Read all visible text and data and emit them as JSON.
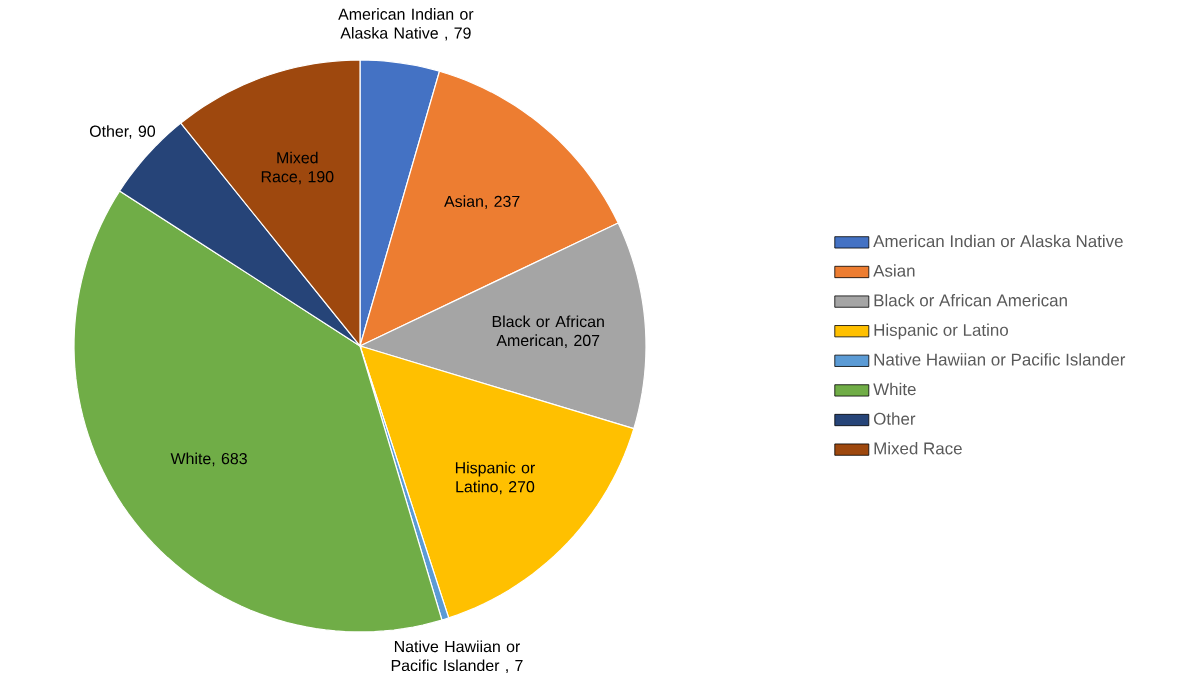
{
  "chart_data": {
    "type": "pie",
    "categories": [
      "American Indian or Alaska Native",
      "Asian",
      "Black or African American",
      "Hispanic or Latino",
      "Native Hawiian or Pacific Islander",
      "White",
      "Other",
      "Mixed Race"
    ],
    "values": [
      79,
      237,
      207,
      270,
      7,
      683,
      90,
      190
    ],
    "value_labels": [
      "American Indian or Alaska Native , 79",
      "Asian, 237",
      "Black or African American, 207",
      "Hispanic or Latino, 270",
      "Native Hawiian or Pacific Islander , 7",
      "White, 683",
      "Other, 90",
      "Mixed Race, 190"
    ],
    "colors": [
      "#4472c4",
      "#ed7d31",
      "#a5a5a5",
      "#ffc000",
      "#5b9bd5",
      "#70ad47",
      "#264478",
      "#9e480e"
    ],
    "legend": "right"
  }
}
